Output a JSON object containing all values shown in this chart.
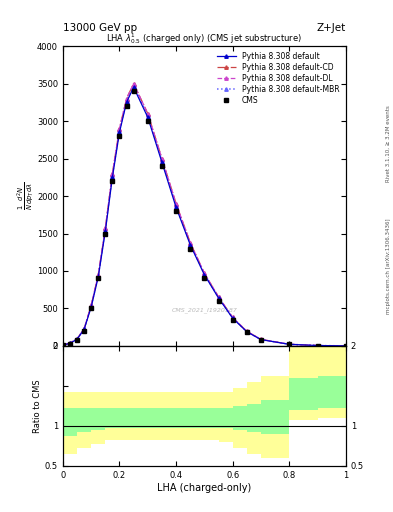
{
  "title_top": "13000 GeV pp",
  "title_right": "Z+Jet",
  "plot_title": "LHA $\\lambda^{1}_{0.5}$ (charged only) (CMS jet substructure)",
  "xlabel": "LHA (charged-only)",
  "ylabel_ratio": "Ratio to CMS",
  "right_label_top": "Rivet 3.1.10, ≥ 3.2M events",
  "right_label_bottom": "mcplots.cern.ch [arXiv:1306.3436]",
  "watermark": "CMS_2021_I1920187",
  "lha_x": [
    0.0,
    0.025,
    0.05,
    0.075,
    0.1,
    0.125,
    0.15,
    0.175,
    0.2,
    0.225,
    0.25,
    0.3,
    0.35,
    0.4,
    0.45,
    0.5,
    0.55,
    0.6,
    0.65,
    0.7,
    0.8,
    0.9,
    1.0
  ],
  "cms_y": [
    10,
    30,
    80,
    200,
    500,
    900,
    1500,
    2200,
    2800,
    3200,
    3400,
    3000,
    2400,
    1800,
    1300,
    900,
    600,
    350,
    180,
    80,
    20,
    5,
    1
  ],
  "pythia_default_y": [
    12,
    35,
    90,
    220,
    520,
    920,
    1530,
    2250,
    2850,
    3250,
    3450,
    3050,
    2450,
    1850,
    1350,
    950,
    640,
    370,
    190,
    85,
    22,
    6,
    1
  ],
  "pythia_CD_y": [
    13,
    37,
    95,
    230,
    540,
    950,
    1570,
    2300,
    2900,
    3300,
    3500,
    3100,
    2500,
    1900,
    1380,
    970,
    655,
    380,
    195,
    88,
    23,
    6,
    1
  ],
  "pythia_DL_y": [
    13,
    37,
    95,
    230,
    540,
    950,
    1570,
    2300,
    2900,
    3300,
    3500,
    3100,
    2500,
    1900,
    1380,
    970,
    655,
    380,
    195,
    88,
    23,
    6,
    1
  ],
  "pythia_MBR_y": [
    12,
    36,
    92,
    225,
    530,
    935,
    1555,
    2275,
    2875,
    3275,
    3475,
    3075,
    2475,
    1875,
    1365,
    960,
    648,
    375,
    192,
    86,
    22,
    6,
    1
  ],
  "ratio_x_edges": [
    0.0,
    0.05,
    0.1,
    0.15,
    0.2,
    0.25,
    0.3,
    0.35,
    0.4,
    0.45,
    0.5,
    0.55,
    0.6,
    0.65,
    0.7,
    0.8,
    0.9,
    1.0
  ],
  "ratio_green_lo": [
    0.88,
    0.92,
    0.95,
    0.97,
    0.97,
    0.97,
    0.97,
    0.97,
    0.97,
    0.97,
    0.97,
    0.97,
    0.95,
    0.92,
    0.9,
    1.2,
    1.22,
    1.22
  ],
  "ratio_green_hi": [
    1.22,
    1.22,
    1.22,
    1.22,
    1.22,
    1.22,
    1.22,
    1.22,
    1.22,
    1.22,
    1.22,
    1.22,
    1.25,
    1.28,
    1.32,
    1.6,
    1.62,
    1.62
  ],
  "ratio_yellow_lo": [
    0.65,
    0.72,
    0.78,
    0.82,
    0.82,
    0.82,
    0.82,
    0.82,
    0.82,
    0.82,
    0.82,
    0.8,
    0.72,
    0.65,
    0.6,
    1.08,
    1.1,
    1.1
  ],
  "ratio_yellow_hi": [
    1.42,
    1.42,
    1.42,
    1.42,
    1.42,
    1.42,
    1.42,
    1.42,
    1.42,
    1.42,
    1.42,
    1.42,
    1.48,
    1.55,
    1.62,
    2.0,
    2.02,
    2.02
  ],
  "ylim_main": [
    0,
    4000
  ],
  "ylim_ratio": [
    0.5,
    2.0
  ],
  "yticks_main": [
    0,
    500,
    1000,
    1500,
    2000,
    2500,
    3000,
    3500,
    4000
  ],
  "color_default": "#0000cc",
  "color_CD": "#cc4444",
  "color_DL": "#cc44cc",
  "color_MBR": "#6666ff",
  "color_cms": "#000000",
  "bg_color": "#ffffff"
}
